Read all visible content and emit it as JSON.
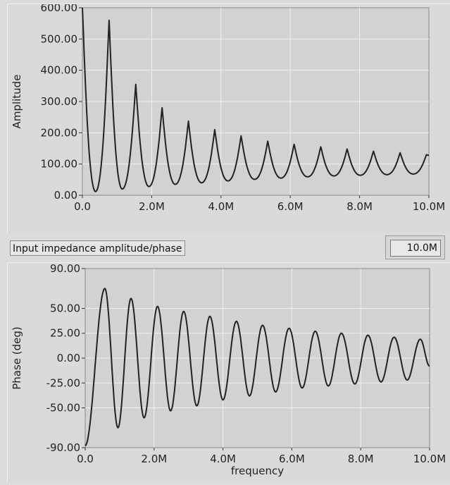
{
  "caption_label": "Input impedance amplitude/phase",
  "display_value": "10.0M",
  "colors": {
    "plot_bg": "#d2d2d2",
    "grid": "#f0f0f0",
    "trace": "#222222",
    "panel": "#dadada"
  },
  "chart_data": [
    {
      "type": "line",
      "title": "",
      "xlabel": "",
      "ylabel": "Amplitude",
      "xlim": [
        0,
        10000000
      ],
      "ylim": [
        0,
        600
      ],
      "grid": true,
      "x_ticks": [
        "0.0",
        "2.0M",
        "4.0M",
        "6.0M",
        "8.0M",
        "10.0M"
      ],
      "x_tick_values": [
        0,
        2000000,
        4000000,
        6000000,
        8000000,
        10000000
      ],
      "y_ticks": [
        "0.00",
        "100.00",
        "200.00",
        "300.00",
        "400.00",
        "500.00",
        "600.00"
      ],
      "y_tick_values": [
        0,
        100,
        200,
        300,
        400,
        500,
        600
      ],
      "peaks": {
        "x": [
          0,
          770000,
          1540000,
          2300000,
          3060000,
          3820000,
          4580000,
          5350000,
          6110000,
          6880000,
          7640000,
          8400000,
          9170000,
          9930000
        ],
        "y": [
          600,
          560,
          355,
          280,
          237,
          210,
          190,
          173,
          163,
          155,
          148,
          141,
          136,
          130
        ]
      },
      "troughs": {
        "x": [
          380000,
          1150000,
          1920000,
          2680000,
          3440000,
          4200000,
          4970000,
          5730000,
          6500000,
          7260000,
          8020000,
          8790000,
          9550000
        ],
        "y": [
          12,
          20,
          28,
          35,
          40,
          46,
          51,
          55,
          59,
          62,
          64,
          66,
          68
        ]
      },
      "series": [
        {
          "values_note": "",
          "x_end": 10000000,
          "y_end": 128
        }
      ]
    },
    {
      "type": "line",
      "title": "",
      "xlabel": "frequency",
      "ylabel": "Phase (deg)",
      "xlim": [
        0,
        10000000
      ],
      "ylim": [
        -90,
        90
      ],
      "grid": true,
      "x_ticks": [
        "0.0",
        "2.0M",
        "4.0M",
        "6.0M",
        "8.0M",
        "10.0M"
      ],
      "x_tick_values": [
        0,
        2000000,
        4000000,
        6000000,
        8000000,
        10000000
      ],
      "y_ticks": [
        "-90.00",
        "-50.00",
        "-25.00",
        "0.00",
        "25.00",
        "50.00",
        "90.00"
      ],
      "y_tick_values": [
        -90,
        -50,
        -25,
        0,
        25,
        50,
        90
      ],
      "start": {
        "x": 0,
        "y": -88
      },
      "peaks": {
        "x": [
          570000,
          1330000,
          2100000,
          2860000,
          3620000,
          4390000,
          5150000,
          5920000,
          6680000,
          7440000,
          8210000,
          8970000,
          9730000
        ],
        "y": [
          70,
          60,
          52,
          47,
          42,
          37,
          33,
          30,
          27,
          25,
          23,
          21,
          19
        ]
      },
      "troughs": {
        "x": [
          950000,
          1710000,
          2480000,
          3240000,
          4000000,
          4770000,
          5530000,
          6300000,
          7060000,
          7830000,
          8590000,
          9350000
        ],
        "y": [
          -70,
          -60,
          -53,
          -48,
          -42,
          -38,
          -34,
          -30,
          -28,
          -26,
          -24,
          -22
        ]
      },
      "end": {
        "x": 10000000,
        "y": -8
      }
    }
  ]
}
